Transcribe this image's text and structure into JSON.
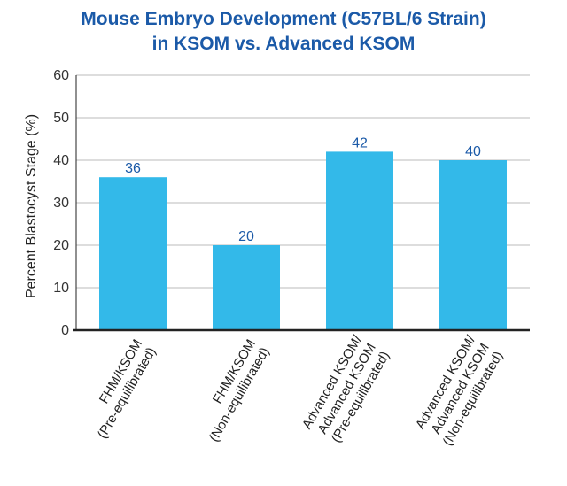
{
  "chart_data": {
    "type": "bar",
    "title_lines": [
      "Mouse Embryo Development (C57BL/6 Strain)",
      "in KSOM vs. Advanced KSOM"
    ],
    "ylabel": "Percent Blastocyst Stage (%)",
    "xlabel": "",
    "ylim": [
      0,
      60
    ],
    "yticks": [
      0,
      10,
      20,
      30,
      40,
      50,
      60
    ],
    "grid": true,
    "categories": [
      [
        "FHM/KSOM",
        "(Pre-equilibrated)"
      ],
      [
        "FHM/KSOM",
        "(Non-equilibrated)"
      ],
      [
        "Advanced KSOM/",
        "Advanced KSOM",
        "(Pre-equilibrated)"
      ],
      [
        "Advanced KSOM/",
        "Advanced KSOM",
        "(Non-equilibrated)"
      ]
    ],
    "values": [
      36,
      20,
      42,
      40
    ],
    "data_labels": [
      "36",
      "20",
      "42",
      "40"
    ],
    "colors": {
      "bar": "#33b9e9",
      "title": "#1b5aa8",
      "data_label": "#1b5aa8",
      "grid": "#bbbbbb",
      "axis": "#222222"
    }
  }
}
